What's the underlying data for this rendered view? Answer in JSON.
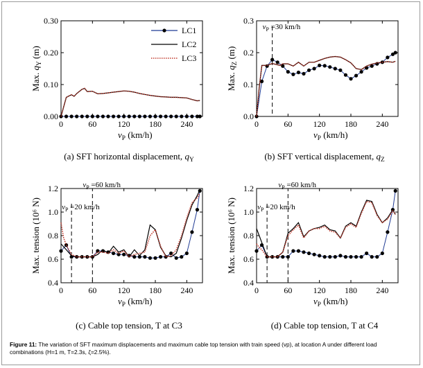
{
  "figure_label": "Figure 11:",
  "figure_caption": "The variation of SFT maximum displacements and maximum cable top tension with train speed (vp), at location A under different load combinations (H=1 m, T=2.3s, ζ=2.5%).",
  "chart_data": [
    {
      "type": "line",
      "caption": "(a) SFT horizontal displacement, qY",
      "ylabel": "Max. qY (m)",
      "xlabel": "vP (km/h)",
      "xlim": [
        0,
        270
      ],
      "ylim": [
        0,
        0.3
      ],
      "xticks": [
        0,
        60,
        120,
        180,
        240
      ],
      "yticks": [
        0.0,
        0.1,
        0.2,
        0.3
      ],
      "ytick_labels": [
        "0.00",
        "0.10",
        "0.20",
        "0.30"
      ],
      "legend": [
        "LC1",
        "LC2",
        "LC3"
      ],
      "legend_position": "top-right",
      "annotations": [],
      "series": [
        {
          "name": "LC1",
          "color": "#1f3a93",
          "style": "solid-dots",
          "x": [
            0,
            10,
            20,
            30,
            40,
            50,
            60,
            70,
            80,
            90,
            100,
            110,
            120,
            130,
            140,
            150,
            160,
            170,
            180,
            190,
            200,
            210,
            220,
            230,
            240,
            250,
            260,
            265
          ],
          "y": [
            0,
            0,
            0,
            0,
            0,
            0,
            0,
            0,
            0,
            0,
            0,
            0,
            0,
            0,
            0,
            0,
            0,
            0,
            0,
            0,
            0,
            0,
            0,
            0,
            0,
            0,
            0,
            0
          ]
        },
        {
          "name": "LC2",
          "color": "#000000",
          "style": "solid",
          "x": [
            0,
            5,
            10,
            20,
            25,
            30,
            40,
            45,
            50,
            60,
            70,
            80,
            90,
            100,
            110,
            120,
            130,
            140,
            150,
            160,
            170,
            180,
            190,
            200,
            210,
            220,
            230,
            240,
            250,
            260,
            265
          ],
          "y": [
            0.0,
            0.03,
            0.06,
            0.068,
            0.063,
            0.072,
            0.085,
            0.088,
            0.078,
            0.079,
            0.071,
            0.072,
            0.074,
            0.076,
            0.078,
            0.08,
            0.079,
            0.076,
            0.072,
            0.069,
            0.066,
            0.064,
            0.062,
            0.061,
            0.06,
            0.06,
            0.059,
            0.058,
            0.053,
            0.049,
            0.05
          ]
        },
        {
          "name": "LC3",
          "color": "#c0392b",
          "style": "dotted",
          "x": [
            0,
            5,
            10,
            20,
            25,
            30,
            40,
            45,
            50,
            60,
            70,
            80,
            90,
            100,
            110,
            120,
            130,
            140,
            150,
            160,
            170,
            180,
            190,
            200,
            210,
            220,
            230,
            240,
            250,
            260,
            265
          ],
          "y": [
            0.0,
            0.03,
            0.06,
            0.068,
            0.063,
            0.072,
            0.085,
            0.088,
            0.078,
            0.079,
            0.071,
            0.072,
            0.074,
            0.076,
            0.078,
            0.08,
            0.079,
            0.076,
            0.072,
            0.069,
            0.066,
            0.064,
            0.062,
            0.061,
            0.06,
            0.06,
            0.059,
            0.058,
            0.053,
            0.049,
            0.05
          ]
        }
      ]
    },
    {
      "type": "line",
      "caption": "(b) SFT vertical displacement, qZ",
      "ylabel": "Max. qZ (m)",
      "xlabel": "vP (km/h)",
      "xlim": [
        0,
        270
      ],
      "ylim": [
        0,
        0.3
      ],
      "xticks": [
        0,
        60,
        120,
        180,
        240
      ],
      "yticks": [
        0.0,
        0.1,
        0.2,
        0.3
      ],
      "ytick_labels": [
        "0.0",
        "0.1",
        "0.2",
        "0.3"
      ],
      "annotations": [
        {
          "text": "vP =30 km/h",
          "x": 30
        }
      ],
      "series": [
        {
          "name": "LC1",
          "color": "#1f3a93",
          "style": "solid-dots",
          "x": [
            0,
            10,
            20,
            30,
            40,
            50,
            60,
            70,
            80,
            90,
            100,
            110,
            120,
            130,
            140,
            150,
            160,
            170,
            180,
            190,
            200,
            210,
            220,
            230,
            240,
            250,
            260,
            265
          ],
          "y": [
            0.0,
            0.11,
            0.158,
            0.178,
            0.17,
            0.158,
            0.14,
            0.132,
            0.138,
            0.134,
            0.145,
            0.15,
            0.16,
            0.159,
            0.155,
            0.15,
            0.145,
            0.13,
            0.118,
            0.128,
            0.14,
            0.152,
            0.158,
            0.165,
            0.17,
            0.185,
            0.195,
            0.2
          ]
        },
        {
          "name": "LC2",
          "color": "#000000",
          "style": "solid",
          "x": [
            0,
            5,
            10,
            20,
            30,
            40,
            45,
            50,
            60,
            70,
            80,
            90,
            100,
            110,
            120,
            130,
            140,
            150,
            160,
            170,
            180,
            190,
            200,
            210,
            220,
            230,
            240,
            250,
            260,
            265
          ],
          "y": [
            0.0,
            0.09,
            0.16,
            0.16,
            0.166,
            0.162,
            0.16,
            0.165,
            0.165,
            0.158,
            0.17,
            0.158,
            0.17,
            0.17,
            0.176,
            0.182,
            0.186,
            0.188,
            0.186,
            0.178,
            0.168,
            0.15,
            0.147,
            0.158,
            0.164,
            0.168,
            0.17,
            0.172,
            0.17,
            0.173
          ]
        },
        {
          "name": "LC3",
          "color": "#c0392b",
          "style": "dotted",
          "x": [
            0,
            5,
            10,
            20,
            30,
            40,
            45,
            50,
            60,
            70,
            80,
            90,
            100,
            110,
            120,
            130,
            140,
            150,
            160,
            170,
            180,
            190,
            200,
            210,
            220,
            230,
            240,
            250,
            260,
            265
          ],
          "y": [
            0.0,
            0.09,
            0.16,
            0.16,
            0.166,
            0.162,
            0.16,
            0.165,
            0.165,
            0.158,
            0.17,
            0.158,
            0.17,
            0.17,
            0.176,
            0.182,
            0.186,
            0.188,
            0.186,
            0.178,
            0.168,
            0.15,
            0.147,
            0.158,
            0.164,
            0.168,
            0.17,
            0.172,
            0.17,
            0.173
          ]
        }
      ]
    },
    {
      "type": "line",
      "caption": "(c) Cable top tension, T at C3",
      "ylabel": "Max. tension (10⁶ N)",
      "xlabel": "vP (km/h)",
      "xlim": [
        0,
        270
      ],
      "ylim": [
        0.4,
        1.2
      ],
      "xticks": [
        0,
        60,
        120,
        180,
        240
      ],
      "yticks": [
        0.4,
        0.6,
        0.8,
        1.0,
        1.2
      ],
      "ytick_labels": [
        "0.4",
        "0.6",
        "0.8",
        "1.0",
        "1.2"
      ],
      "annotations": [
        {
          "text": "vP =20 km/h",
          "x": 20
        },
        {
          "text": "vP =60 km/h",
          "x": 60
        }
      ],
      "series": [
        {
          "name": "LC1",
          "color": "#1f3a93",
          "style": "solid-dots",
          "x": [
            0,
            10,
            20,
            30,
            40,
            50,
            60,
            70,
            80,
            90,
            100,
            110,
            120,
            130,
            140,
            150,
            160,
            170,
            180,
            190,
            200,
            210,
            220,
            230,
            240,
            250,
            260,
            265
          ],
          "y": [
            0.67,
            0.72,
            0.62,
            0.62,
            0.62,
            0.62,
            0.62,
            0.67,
            0.67,
            0.66,
            0.65,
            0.64,
            0.64,
            0.63,
            0.62,
            0.62,
            0.62,
            0.61,
            0.61,
            0.62,
            0.62,
            0.65,
            0.61,
            0.62,
            0.65,
            0.83,
            1.02,
            1.18
          ]
        },
        {
          "name": "LC2",
          "color": "#000000",
          "style": "solid",
          "x": [
            0,
            10,
            20,
            30,
            40,
            50,
            60,
            70,
            80,
            90,
            100,
            110,
            120,
            130,
            140,
            150,
            160,
            170,
            180,
            190,
            200,
            210,
            220,
            230,
            240,
            250,
            260,
            265
          ],
          "y": [
            0.73,
            0.68,
            0.63,
            0.62,
            0.62,
            0.62,
            0.62,
            0.64,
            0.68,
            0.65,
            0.71,
            0.66,
            0.68,
            0.62,
            0.68,
            0.63,
            0.68,
            0.89,
            0.85,
            0.7,
            0.63,
            0.62,
            0.65,
            0.78,
            0.93,
            1.06,
            1.14,
            1.19
          ]
        },
        {
          "name": "LC3",
          "color": "#c0392b",
          "style": "dotted",
          "x": [
            0,
            5,
            10,
            20,
            30,
            40,
            50,
            60,
            70,
            80,
            90,
            100,
            110,
            120,
            130,
            140,
            150,
            160,
            170,
            180,
            190,
            200,
            210,
            220,
            230,
            240,
            250,
            260,
            265
          ],
          "y": [
            0.91,
            0.78,
            0.72,
            0.64,
            0.62,
            0.62,
            0.62,
            0.62,
            0.66,
            0.66,
            0.65,
            0.68,
            0.65,
            0.67,
            0.62,
            0.64,
            0.65,
            0.66,
            0.8,
            0.85,
            0.71,
            0.62,
            0.63,
            0.68,
            0.8,
            0.95,
            1.08,
            1.12,
            1.16
          ]
        }
      ]
    },
    {
      "type": "line",
      "caption": "(d) Cable top tension, T at C4",
      "ylabel": "Max. tension (10⁶ N)",
      "xlabel": "vP (km/h)",
      "xlim": [
        0,
        270
      ],
      "ylim": [
        0.4,
        1.2
      ],
      "xticks": [
        0,
        60,
        120,
        180,
        240
      ],
      "yticks": [
        0.4,
        0.6,
        0.8,
        1.0,
        1.2
      ],
      "ytick_labels": [
        "0.4",
        "0.6",
        "0.8",
        "1.0",
        "1.2"
      ],
      "annotations": [
        {
          "text": "vP =20 km/h",
          "x": 20
        },
        {
          "text": "vP =60 km/h",
          "x": 60
        }
      ],
      "series": [
        {
          "name": "LC1",
          "color": "#1f3a93",
          "style": "solid-dots",
          "x": [
            0,
            10,
            20,
            30,
            40,
            50,
            60,
            70,
            80,
            90,
            100,
            110,
            120,
            130,
            140,
            150,
            160,
            170,
            180,
            190,
            200,
            210,
            220,
            230,
            240,
            250,
            260,
            265
          ],
          "y": [
            0.67,
            0.72,
            0.62,
            0.62,
            0.62,
            0.62,
            0.62,
            0.67,
            0.67,
            0.66,
            0.65,
            0.64,
            0.63,
            0.62,
            0.62,
            0.62,
            0.63,
            0.62,
            0.62,
            0.62,
            0.62,
            0.65,
            0.62,
            0.62,
            0.65,
            0.83,
            1.02,
            1.18
          ]
        },
        {
          "name": "LC2",
          "color": "#000000",
          "style": "solid",
          "x": [
            0,
            5,
            10,
            20,
            30,
            40,
            50,
            60,
            70,
            80,
            90,
            100,
            110,
            120,
            130,
            140,
            150,
            160,
            170,
            180,
            190,
            200,
            210,
            220,
            230,
            240,
            250,
            260,
            265
          ],
          "y": [
            0.86,
            0.8,
            0.74,
            0.62,
            0.62,
            0.62,
            0.66,
            0.82,
            0.86,
            0.91,
            0.79,
            0.84,
            0.86,
            0.87,
            0.89,
            0.85,
            0.84,
            0.78,
            0.88,
            0.91,
            0.88,
            1.0,
            1.1,
            1.09,
            0.98,
            0.91,
            0.95,
            1.02,
            0.98
          ]
        },
        {
          "name": "LC3",
          "color": "#c0392b",
          "style": "dotted",
          "x": [
            0,
            5,
            10,
            20,
            30,
            40,
            50,
            60,
            70,
            80,
            90,
            100,
            110,
            120,
            130,
            140,
            150,
            160,
            170,
            180,
            190,
            200,
            210,
            220,
            230,
            240,
            250,
            260,
            265
          ],
          "y": [
            0.73,
            0.7,
            0.68,
            0.62,
            0.62,
            0.62,
            0.66,
            0.8,
            0.85,
            0.89,
            0.78,
            0.84,
            0.86,
            0.86,
            0.88,
            0.84,
            0.83,
            0.78,
            0.87,
            0.9,
            0.87,
            0.99,
            1.09,
            1.08,
            0.97,
            0.91,
            0.94,
            1.01,
            0.98
          ]
        }
      ]
    }
  ]
}
